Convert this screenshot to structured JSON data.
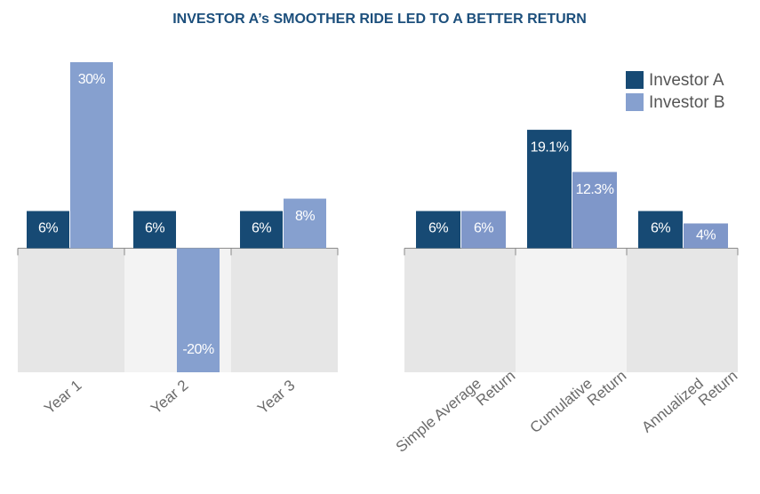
{
  "chart_data": [
    {
      "type": "bar",
      "title": "INVESTOR A’s SMOOTHER RIDE LED TO A BETTER RETURN",
      "categories": [
        "Year 1",
        "Year 2",
        "Year 3"
      ],
      "series": [
        {
          "name": "Investor A",
          "color": "#174a74",
          "values": [
            6,
            6,
            6
          ],
          "value_labels": [
            "6%",
            "6%",
            "6%"
          ]
        },
        {
          "name": "Investor B",
          "color": "#86a0cf",
          "values": [
            30,
            -20,
            8
          ],
          "value_labels": [
            "30%",
            "-20%",
            "8%"
          ]
        }
      ],
      "ylim": [
        -20,
        30
      ],
      "legend": "upper right"
    },
    {
      "type": "bar",
      "categories": [
        [
          "Simple Average",
          "Return"
        ],
        [
          "Cumulative",
          "Return"
        ],
        [
          "Annualized",
          "Return"
        ]
      ],
      "series": [
        {
          "color": "#174a74",
          "values": [
            6,
            19.1,
            6
          ],
          "value_labels": [
            "6%",
            "19.1%",
            "6%"
          ]
        },
        {
          "color": "#7f97c9",
          "values": [
            6,
            12.3,
            4
          ],
          "value_labels": [
            "6%",
            "12.3%",
            "4%"
          ]
        }
      ],
      "ylim": [
        -20,
        30
      ]
    }
  ]
}
